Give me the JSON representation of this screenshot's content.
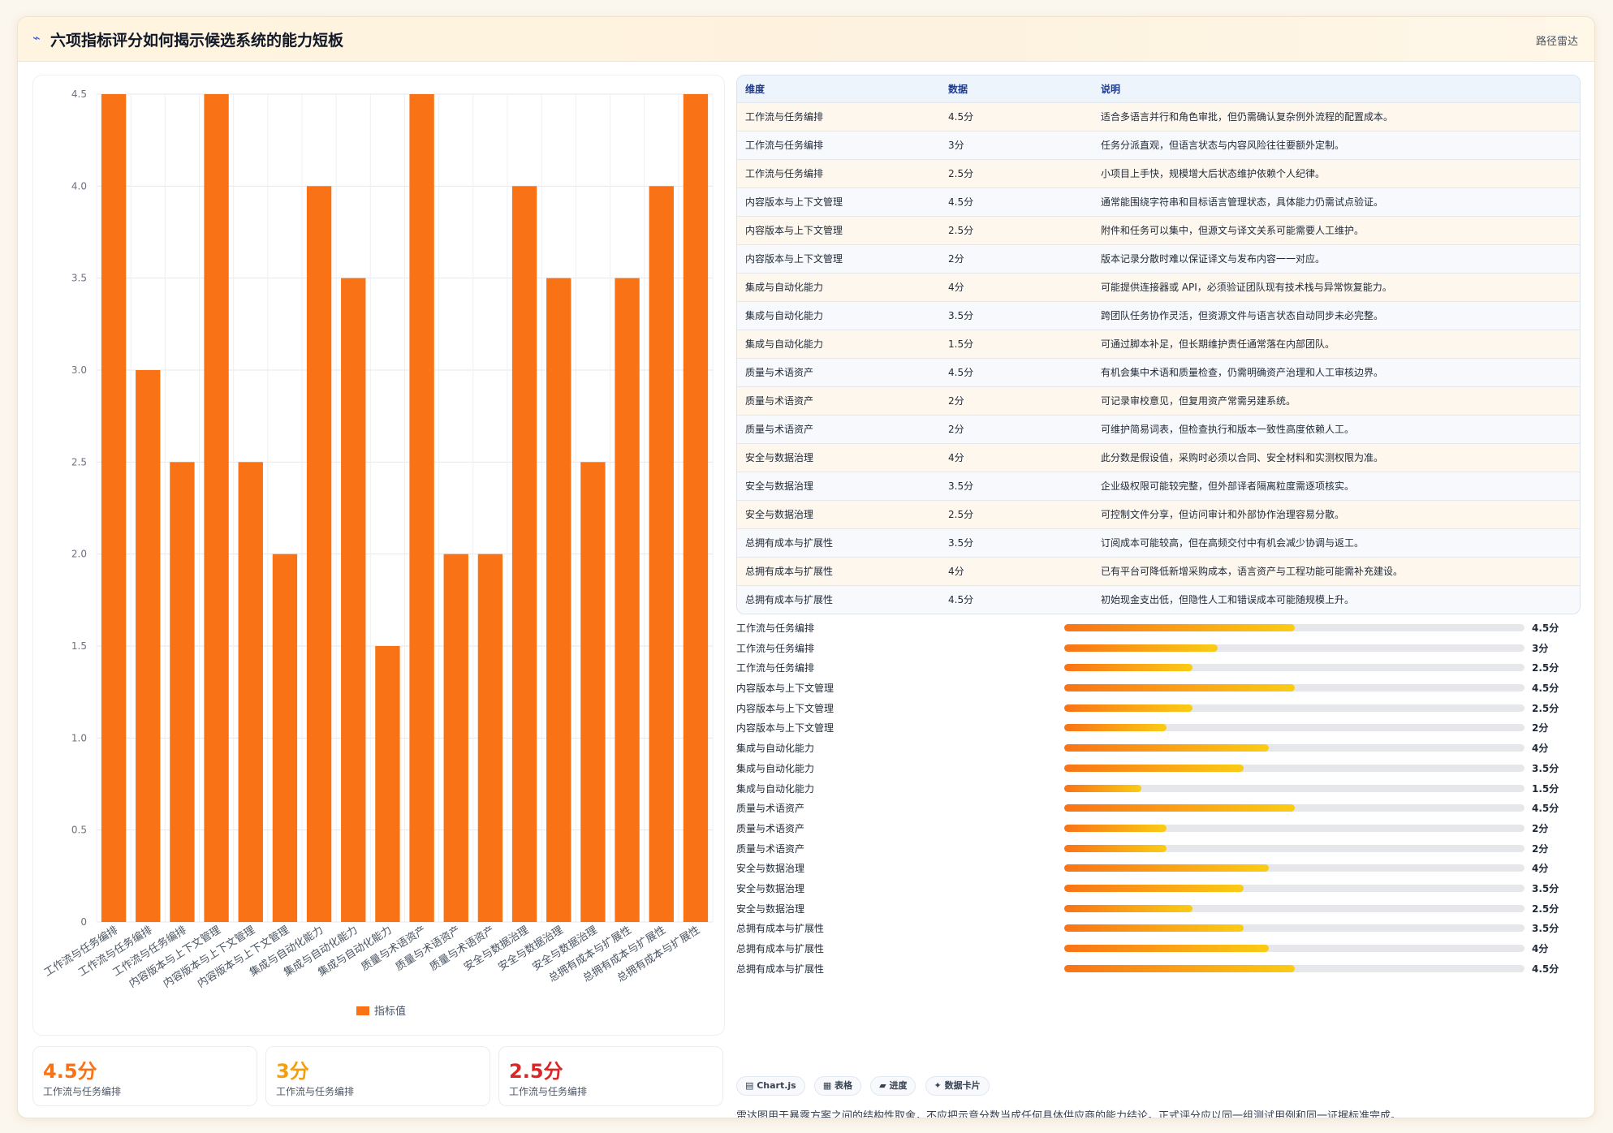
{
  "header": {
    "icon": "chart-icon",
    "title": "六项指标评分如何揭示候选系统的能力短板",
    "tag": "路径雷达"
  },
  "chart_data": {
    "type": "bar",
    "categories": [
      "工作流与任务编排",
      "工作流与任务编排",
      "工作流与任务编排",
      "内容版本与上下文管理",
      "内容版本与上下文管理",
      "内容版本与上下文管理",
      "集成与自动化能力",
      "集成与自动化能力",
      "集成与自动化能力",
      "质量与术语资产",
      "质量与术语资产",
      "质量与术语资产",
      "安全与数据治理",
      "安全与数据治理",
      "安全与数据治理",
      "总拥有成本与扩展性",
      "总拥有成本与扩展性",
      "总拥有成本与扩展性"
    ],
    "series": [
      {
        "name": "指标值",
        "values": [
          4.5,
          3,
          2.5,
          4.5,
          2.5,
          2,
          4,
          3.5,
          1.5,
          4.5,
          2,
          2,
          4,
          3.5,
          2.5,
          3.5,
          4,
          4.5
        ]
      }
    ],
    "ylim": [
      0,
      4.5
    ],
    "yticks": [
      "0",
      "0.5",
      "1.0",
      "1.5",
      "2.0",
      "2.5",
      "3.0",
      "3.5",
      "4.0",
      "4.5"
    ],
    "grid": true,
    "legend": "bottom",
    "bar_color": "#f97316"
  },
  "stats": [
    {
      "value": "4.5分",
      "label": "工作流与任务编排",
      "color": "#f97316"
    },
    {
      "value": "3分",
      "label": "工作流与任务编排",
      "color": "#f59e0b"
    },
    {
      "value": "2.5分",
      "label": "工作流与任务编排",
      "color": "#dc2626"
    }
  ],
  "table": {
    "headers": [
      "维度",
      "数据",
      "说明"
    ],
    "rows": [
      [
        "工作流与任务编排",
        "4.5分",
        "适合多语言并行和角色审批，但仍需确认复杂例外流程的配置成本。"
      ],
      [
        "工作流与任务编排",
        "3分",
        "任务分派直观，但语言状态与内容风险往往要额外定制。"
      ],
      [
        "工作流与任务编排",
        "2.5分",
        "小项目上手快，规模增大后状态维护依赖个人纪律。"
      ],
      [
        "内容版本与上下文管理",
        "4.5分",
        "通常能围绕字符串和目标语言管理状态，具体能力仍需试点验证。"
      ],
      [
        "内容版本与上下文管理",
        "2.5分",
        "附件和任务可以集中，但源文与译文关系可能需要人工维护。"
      ],
      [
        "内容版本与上下文管理",
        "2分",
        "版本记录分散时难以保证译文与发布内容一一对应。"
      ],
      [
        "集成与自动化能力",
        "4分",
        "可能提供连接器或 API，必须验证团队现有技术栈与异常恢复能力。"
      ],
      [
        "集成与自动化能力",
        "3.5分",
        "跨团队任务协作灵活，但资源文件与语言状态自动同步未必完整。"
      ],
      [
        "集成与自动化能力",
        "1.5分",
        "可通过脚本补足，但长期维护责任通常落在内部团队。"
      ],
      [
        "质量与术语资产",
        "4.5分",
        "有机会集中术语和质量检查，仍需明确资产治理和人工审核边界。"
      ],
      [
        "质量与术语资产",
        "2分",
        "可记录审校意见，但复用资产常需另建系统。"
      ],
      [
        "质量与术语资产",
        "2分",
        "可维护简易词表，但检查执行和版本一致性高度依赖人工。"
      ],
      [
        "安全与数据治理",
        "4分",
        "此分数是假设值，采购时必须以合同、安全材料和实测权限为准。"
      ],
      [
        "安全与数据治理",
        "3.5分",
        "企业级权限可能较完整，但外部译者隔离粒度需逐项核实。"
      ],
      [
        "安全与数据治理",
        "2.5分",
        "可控制文件分享，但访问审计和外部协作治理容易分散。"
      ],
      [
        "总拥有成本与扩展性",
        "3.5分",
        "订阅成本可能较高，但在高频交付中有机会减少协调与返工。"
      ],
      [
        "总拥有成本与扩展性",
        "4分",
        "已有平台可降低新增采购成本，语言资产与工程功能可能需补充建设。"
      ],
      [
        "总拥有成本与扩展性",
        "4.5分",
        "初始现金支出低，但隐性人工和错误成本可能随规模上升。"
      ]
    ]
  },
  "progress": [
    {
      "label": "工作流与任务编排",
      "value": 4.5,
      "text": "4.5分"
    },
    {
      "label": "工作流与任务编排",
      "value": 3,
      "text": "3分"
    },
    {
      "label": "工作流与任务编排",
      "value": 2.5,
      "text": "2.5分"
    },
    {
      "label": "内容版本与上下文管理",
      "value": 4.5,
      "text": "4.5分"
    },
    {
      "label": "内容版本与上下文管理",
      "value": 2.5,
      "text": "2.5分"
    },
    {
      "label": "内容版本与上下文管理",
      "value": 2,
      "text": "2分"
    },
    {
      "label": "集成与自动化能力",
      "value": 4,
      "text": "4分"
    },
    {
      "label": "集成与自动化能力",
      "value": 3.5,
      "text": "3.5分"
    },
    {
      "label": "集成与自动化能力",
      "value": 1.5,
      "text": "1.5分"
    },
    {
      "label": "质量与术语资产",
      "value": 4.5,
      "text": "4.5分"
    },
    {
      "label": "质量与术语资产",
      "value": 2,
      "text": "2分"
    },
    {
      "label": "质量与术语资产",
      "value": 2,
      "text": "2分"
    },
    {
      "label": "安全与数据治理",
      "value": 4,
      "text": "4分"
    },
    {
      "label": "安全与数据治理",
      "value": 3.5,
      "text": "3.5分"
    },
    {
      "label": "安全与数据治理",
      "value": 2.5,
      "text": "2.5分"
    },
    {
      "label": "总拥有成本与扩展性",
      "value": 3.5,
      "text": "3.5分"
    },
    {
      "label": "总拥有成本与扩展性",
      "value": 4,
      "text": "4分"
    },
    {
      "label": "总拥有成本与扩展性",
      "value": 4.5,
      "text": "4.5分"
    }
  ],
  "progress_max": 9,
  "chips": [
    "▤ Chart.js",
    "▦ 表格",
    "▰ 进度",
    "✦ 数据卡片"
  ],
  "note": "雷达图用于暴露方案之间的结构性取舍，不应把示意分数当成任何具体供应商的能力结论。正式评分应以同一组测试用例和同一证据标准完成。"
}
